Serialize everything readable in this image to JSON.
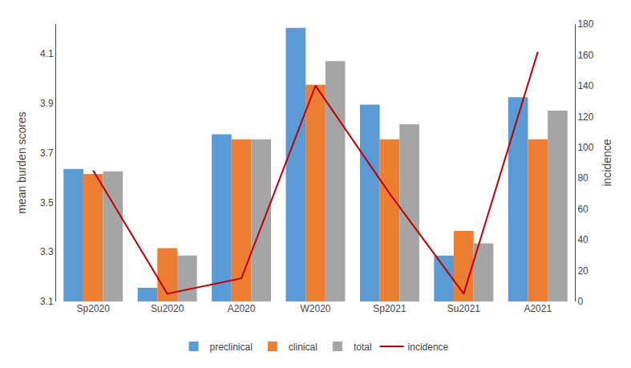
{
  "chart_data": {
    "type": "bar",
    "categories": [
      "Sp2020",
      "Su2020",
      "A2020",
      "W2020",
      "Sp2021",
      "Su2021",
      "A2021"
    ],
    "series": [
      {
        "name": "preclinical",
        "color": "#5b9bd5",
        "values": [
          3.635,
          3.155,
          3.775,
          4.205,
          3.895,
          3.285,
          3.925
        ]
      },
      {
        "name": "clinical",
        "color": "#ed7d31",
        "values": [
          3.615,
          3.315,
          3.755,
          3.975,
          3.755,
          3.385,
          3.755
        ]
      },
      {
        "name": "total",
        "color": "#a5a5a5",
        "values": [
          3.625,
          3.285,
          3.755,
          4.07,
          3.815,
          3.335,
          3.87
        ]
      },
      {
        "name": "incidence",
        "type": "line",
        "axis": "y2",
        "color": "#c00000",
        "values": [
          85,
          5,
          15,
          140,
          70,
          5,
          162
        ]
      }
    ],
    "ylabel": "mean burden scores",
    "y2label": "incidence",
    "ylim": [
      3.1,
      4.22
    ],
    "yticks": [
      3.1,
      3.3,
      3.5,
      3.7,
      3.9,
      4.1
    ],
    "y2lim": [
      0,
      180
    ],
    "y2ticks": [
      0,
      20,
      40,
      60,
      80,
      100,
      120,
      140,
      160,
      180
    ],
    "grid": false,
    "legend": "bottom"
  }
}
